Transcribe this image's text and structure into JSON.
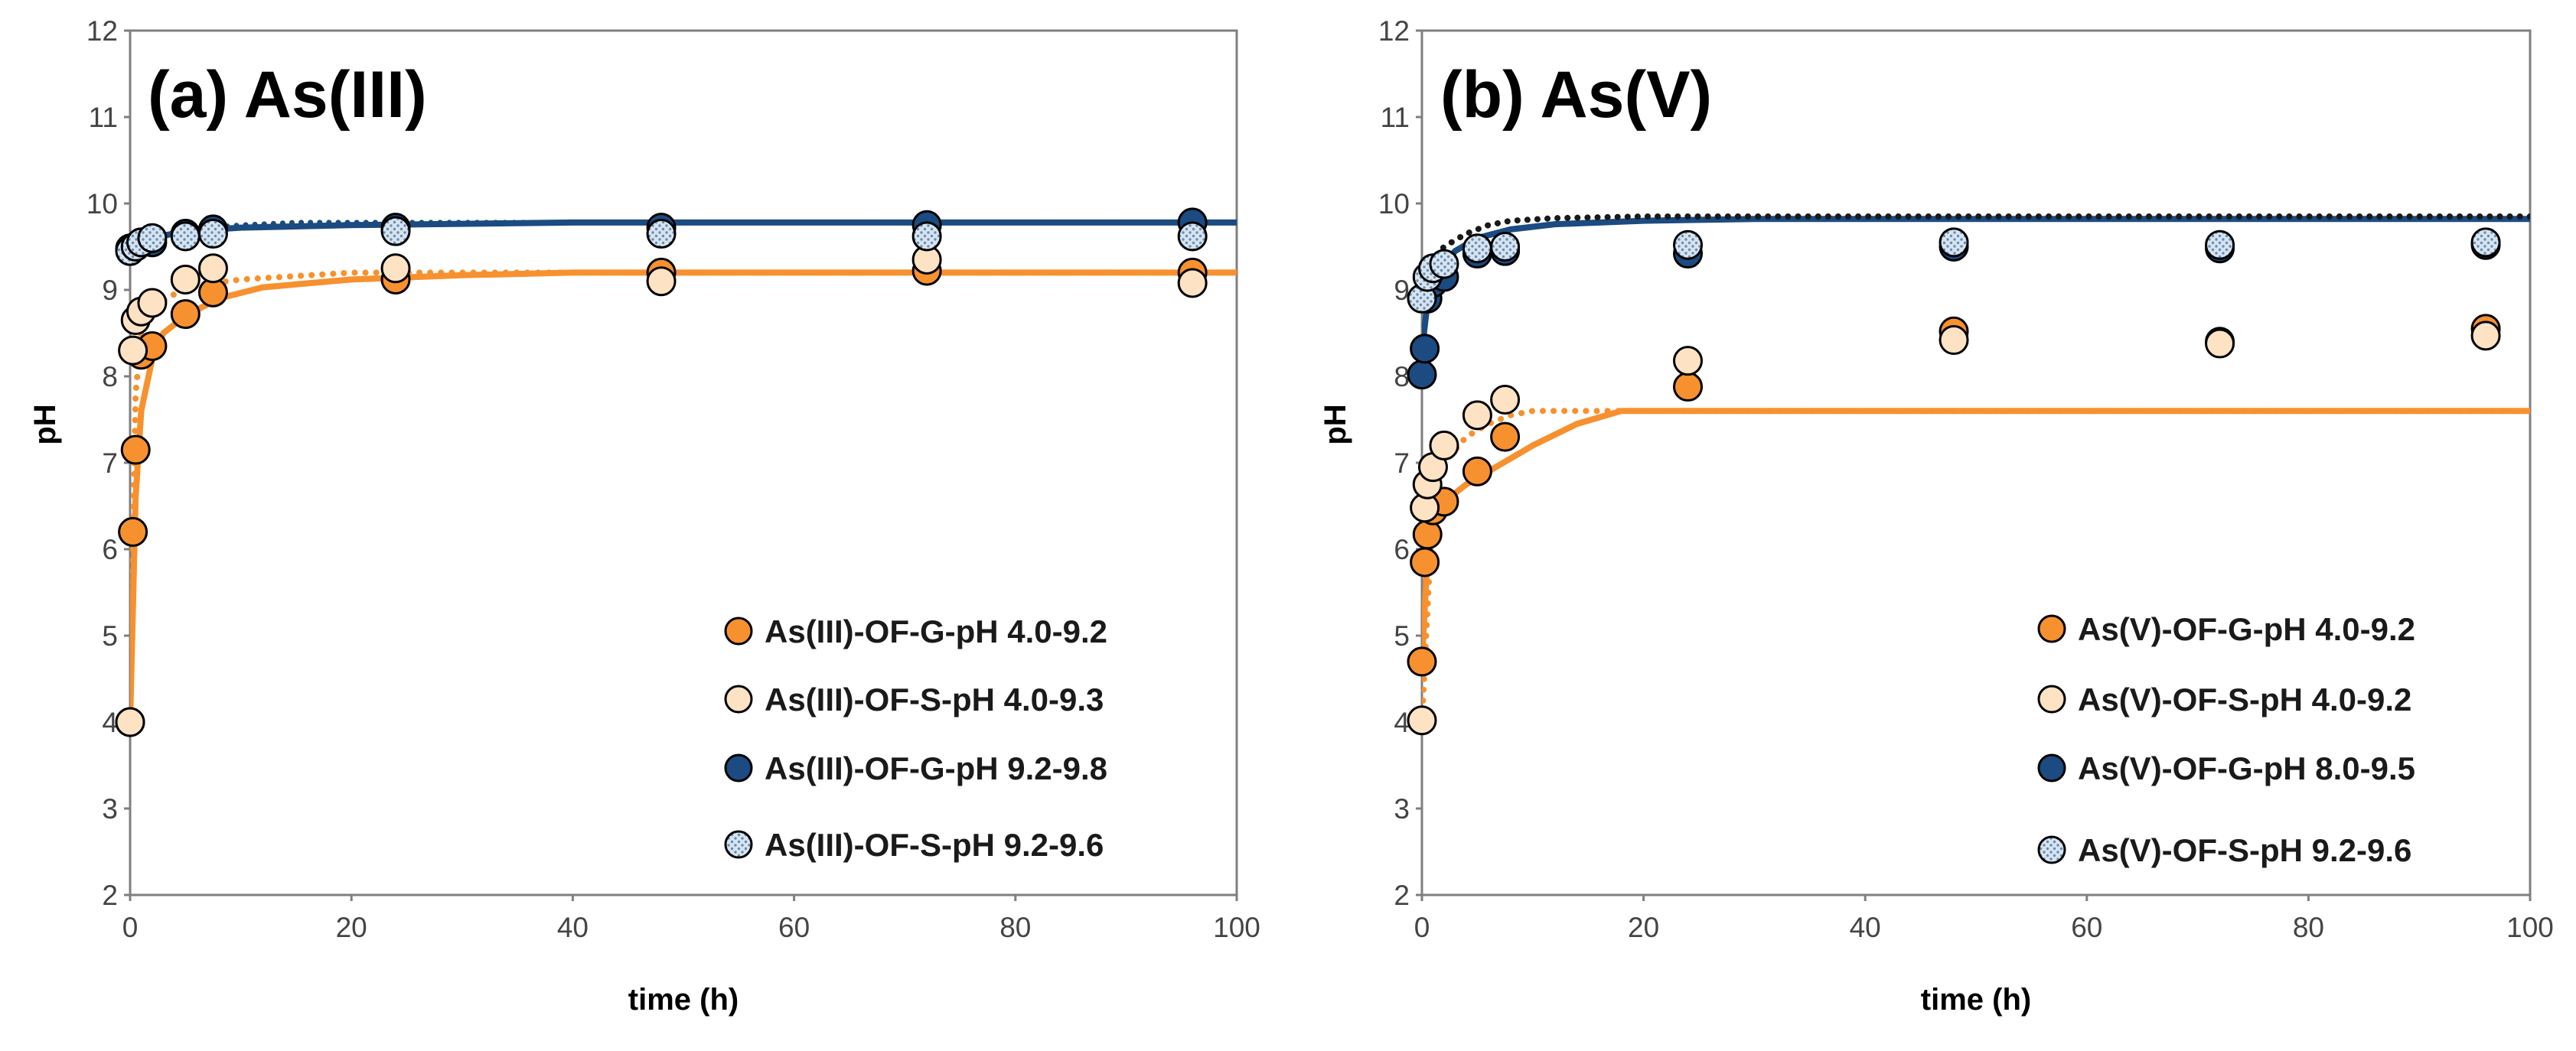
{
  "colors": {
    "orange": "#F7912F",
    "light": "#FDE2C4",
    "navy": "#1B4B80",
    "dotted_fill": "#D6E4F0",
    "dotted_dot": "#6A8CB0",
    "black_dot_line": "#1a1a1a"
  },
  "chart_data": [
    {
      "type": "scatter",
      "title": "(a) As(III)",
      "xlabel": "time (h)",
      "ylabel": "pH",
      "xlim": [
        0,
        100
      ],
      "ylim": [
        2,
        12
      ],
      "xticks": [
        "0",
        "20",
        "40",
        "60",
        "80",
        "100"
      ],
      "yticks": [
        "2",
        "3",
        "4",
        "5",
        "6",
        "7",
        "8",
        "9",
        "10",
        "11",
        "12"
      ],
      "grid": false,
      "legend_position": "bottom-right",
      "series": [
        {
          "name": "As(III)-OF-G-pH 4.0-9.2",
          "marker": "orange",
          "x": [
            0,
            0.25,
            0.5,
            1,
            2,
            5,
            7.5,
            24,
            48,
            72,
            96
          ],
          "y": [
            4.0,
            6.2,
            7.15,
            8.25,
            8.35,
            8.72,
            8.97,
            9.12,
            9.2,
            9.22,
            9.2
          ]
        },
        {
          "name": "As(III)-OF-S-pH 4.0-9.3",
          "marker": "light",
          "x": [
            0,
            0.25,
            0.5,
            1,
            2,
            5,
            7.5,
            24,
            48,
            72,
            96
          ],
          "y": [
            4.0,
            8.3,
            8.65,
            8.75,
            8.85,
            9.12,
            9.25,
            9.25,
            9.1,
            9.35,
            9.08
          ]
        },
        {
          "name": "As(III)-OF-G-pH 9.2-9.8",
          "marker": "navy",
          "x": [
            0,
            0.5,
            1,
            2,
            5,
            7.5,
            24,
            48,
            72,
            96
          ],
          "y": [
            9.48,
            9.5,
            9.55,
            9.55,
            9.65,
            9.7,
            9.72,
            9.72,
            9.75,
            9.78
          ]
        },
        {
          "name": "As(III)-OF-S-pH 9.2-9.6",
          "marker": "dotted",
          "x": [
            0,
            0.5,
            1,
            2,
            5,
            7.5,
            24,
            48,
            72,
            96
          ],
          "y": [
            9.45,
            9.5,
            9.55,
            9.6,
            9.62,
            9.65,
            9.68,
            9.65,
            9.62,
            9.62
          ]
        }
      ],
      "fits": [
        {
          "style": "orange-solid",
          "x": [
            0,
            0.5,
            1,
            2,
            3,
            5,
            8,
            12,
            20,
            30,
            40,
            100
          ],
          "y": [
            4.0,
            6.6,
            7.6,
            8.2,
            8.5,
            8.7,
            8.9,
            9.03,
            9.12,
            9.17,
            9.2,
            9.2
          ]
        },
        {
          "style": "orange-dotted",
          "x": [
            0,
            0.5,
            1,
            2,
            4,
            6,
            10,
            20,
            100
          ],
          "y": [
            4.0,
            7.8,
            8.5,
            8.8,
            8.95,
            9.05,
            9.12,
            9.2,
            9.2
          ]
        },
        {
          "style": "navy-solid",
          "x": [
            0,
            2,
            5,
            10,
            20,
            40,
            100
          ],
          "y": [
            9.48,
            9.6,
            9.68,
            9.72,
            9.75,
            9.78,
            9.78
          ]
        },
        {
          "style": "navy-dotted",
          "x": [
            0,
            2,
            5,
            10,
            15,
            100
          ],
          "y": [
            9.45,
            9.6,
            9.7,
            9.75,
            9.78,
            9.78
          ]
        }
      ]
    },
    {
      "type": "scatter",
      "title": "(b) As(V)",
      "xlabel": "time (h)",
      "ylabel": "pH",
      "xlim": [
        0,
        100
      ],
      "ylim": [
        2,
        12
      ],
      "xticks": [
        "0",
        "20",
        "40",
        "60",
        "80",
        "100"
      ],
      "yticks": [
        "2",
        "3",
        "4",
        "5",
        "6",
        "7",
        "8",
        "9",
        "10",
        "11",
        "12"
      ],
      "grid": false,
      "legend_position": "bottom-right",
      "series": [
        {
          "name": "As(V)-OF-G-pH 4.0-9.2",
          "marker": "orange",
          "x": [
            0,
            0.25,
            0.5,
            1,
            2,
            5,
            7.5,
            24,
            48,
            72,
            96
          ],
          "y": [
            4.7,
            5.85,
            6.17,
            6.45,
            6.55,
            6.9,
            7.3,
            7.88,
            8.52,
            8.4,
            8.55
          ]
        },
        {
          "name": "As(V)-OF-S-pH 4.0-9.2",
          "marker": "light",
          "x": [
            0,
            0.25,
            0.5,
            1,
            2,
            5,
            7.5,
            24,
            48,
            72,
            96
          ],
          "y": [
            4.02,
            6.48,
            6.75,
            6.95,
            7.2,
            7.55,
            7.73,
            8.18,
            8.42,
            8.38,
            8.47
          ]
        },
        {
          "name": "As(V)-OF-G-pH 8.0-9.5",
          "marker": "navy",
          "x": [
            0,
            0.25,
            0.5,
            1,
            2,
            5,
            7.5,
            24,
            48,
            72,
            96
          ],
          "y": [
            8.02,
            8.32,
            8.9,
            9.08,
            9.15,
            9.42,
            9.45,
            9.42,
            9.5,
            9.48,
            9.52
          ]
        },
        {
          "name": "As(V)-OF-S-pH 9.2-9.6",
          "marker": "dotted",
          "x": [
            0,
            0.5,
            1,
            2,
            5,
            7.5,
            24,
            48,
            72,
            96
          ],
          "y": [
            8.9,
            9.15,
            9.25,
            9.3,
            9.48,
            9.5,
            9.52,
            9.55,
            9.52,
            9.55
          ]
        }
      ],
      "fits": [
        {
          "style": "orange-solid",
          "x": [
            0,
            0.5,
            1,
            2,
            4,
            6,
            10,
            14,
            18,
            100
          ],
          "y": [
            4.7,
            5.9,
            6.3,
            6.55,
            6.75,
            6.9,
            7.2,
            7.45,
            7.6,
            7.6
          ]
        },
        {
          "style": "orange-dotted",
          "x": [
            0,
            1,
            2,
            4,
            6,
            8,
            10,
            14,
            18,
            100
          ],
          "y": [
            4.0,
            6.6,
            7.0,
            7.3,
            7.45,
            7.55,
            7.6,
            7.6,
            7.6,
            7.6
          ]
        },
        {
          "style": "navy-solid",
          "x": [
            0,
            0.5,
            1,
            2,
            3,
            5,
            8,
            12,
            20,
            30,
            100
          ],
          "y": [
            8.3,
            8.85,
            9.1,
            9.3,
            9.45,
            9.6,
            9.7,
            9.76,
            9.8,
            9.82,
            9.82
          ]
        },
        {
          "style": "black-dotted",
          "x": [
            0,
            0.5,
            1,
            2,
            4,
            6,
            8,
            12,
            20,
            100
          ],
          "y": [
            9.1,
            9.25,
            9.35,
            9.5,
            9.65,
            9.75,
            9.8,
            9.83,
            9.85,
            9.85
          ]
        }
      ]
    }
  ]
}
